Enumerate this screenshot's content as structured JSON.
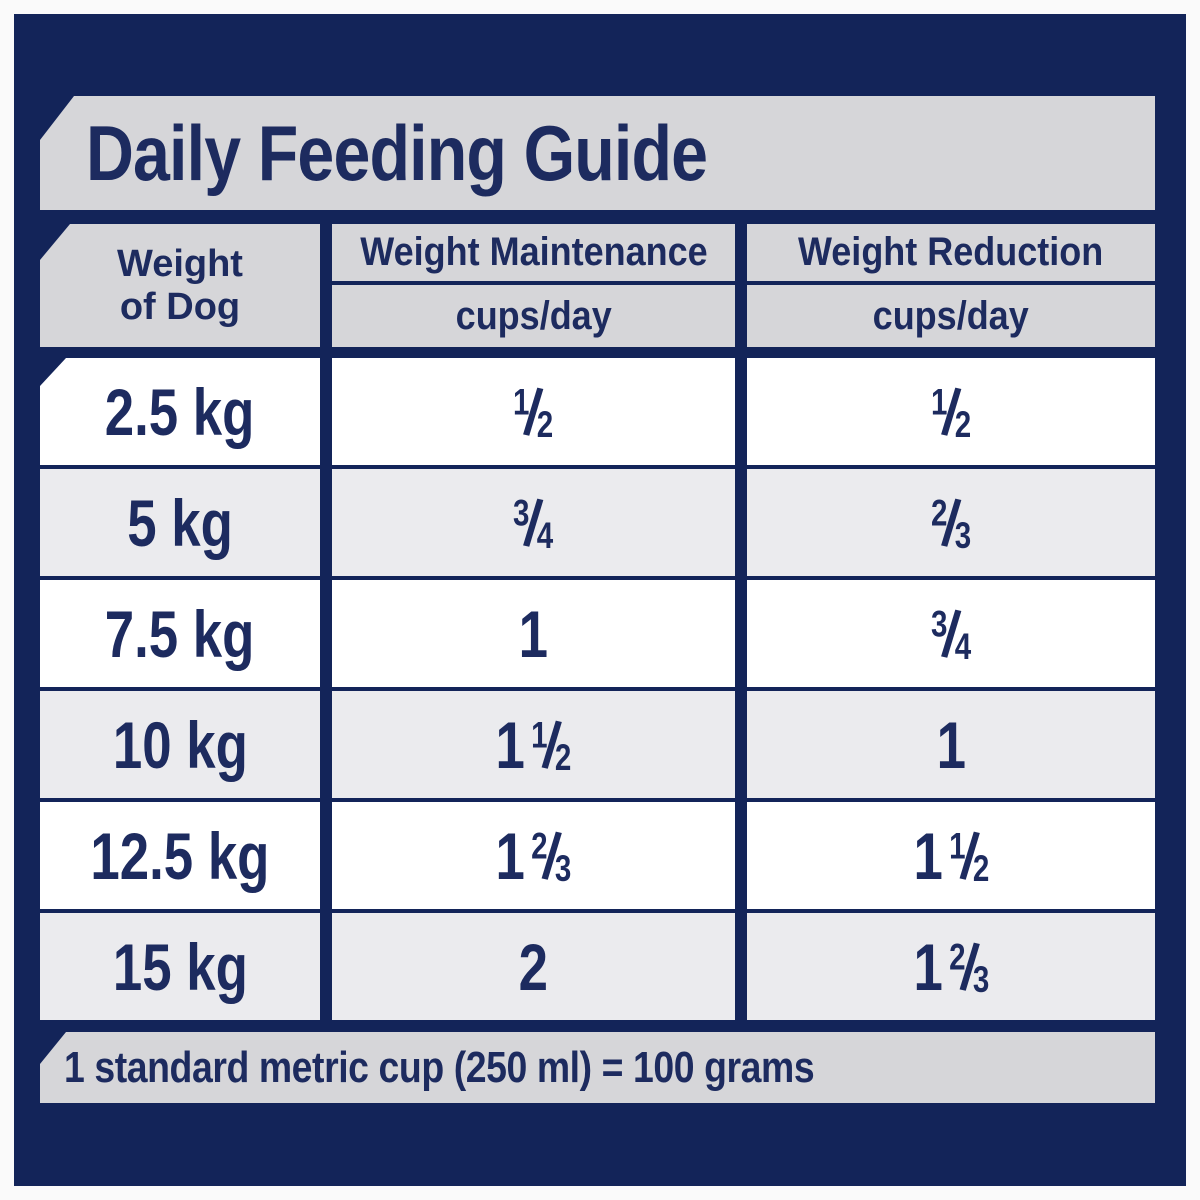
{
  "title": "Daily Feeding Guide",
  "table": {
    "weight_header": {
      "line1": "Weight",
      "line2": "of Dog"
    },
    "col_maintenance": {
      "title": "Weight Maintenance",
      "unit": "cups/day"
    },
    "col_reduction": {
      "title": "Weight Reduction",
      "unit": "cups/day"
    },
    "rows": [
      {
        "weight": "2.5 kg",
        "maintenance": "1/2",
        "reduction": "1/2"
      },
      {
        "weight": "5 kg",
        "maintenance": "3/4",
        "reduction": "2/3"
      },
      {
        "weight": "7.5 kg",
        "maintenance": "1",
        "reduction": "3/4"
      },
      {
        "weight": "10 kg",
        "maintenance": "1 1/2",
        "reduction": "1"
      },
      {
        "weight": "12.5 kg",
        "maintenance": "1 2/3",
        "reduction": "1 1/2"
      },
      {
        "weight": "15 kg",
        "maintenance": "2",
        "reduction": "1 2/3"
      }
    ]
  },
  "footnote": "1 standard metric cup (250 ml) = 100 grams",
  "colors": {
    "navy_background": "#132459",
    "text_navy": "#1d2b5f",
    "banner_gray": "#d6d6d9",
    "row_alt_gray": "#ebebee",
    "row_white": "#ffffff",
    "page_border": "#fafafa"
  },
  "chart_data": {
    "type": "table",
    "title": "Daily Feeding Guide",
    "columns": [
      "Weight of Dog",
      "Weight Maintenance cups/day",
      "Weight Reduction cups/day"
    ],
    "rows": [
      [
        "2.5 kg",
        "1/2",
        "1/2"
      ],
      [
        "5 kg",
        "3/4",
        "2/3"
      ],
      [
        "7.5 kg",
        "1",
        "3/4"
      ],
      [
        "10 kg",
        "1 1/2",
        "1"
      ],
      [
        "12.5 kg",
        "1 2/3",
        "1 1/2"
      ],
      [
        "15 kg",
        "2",
        "1 2/3"
      ]
    ],
    "footnote": "1 standard metric cup (250 ml) = 100 grams"
  }
}
